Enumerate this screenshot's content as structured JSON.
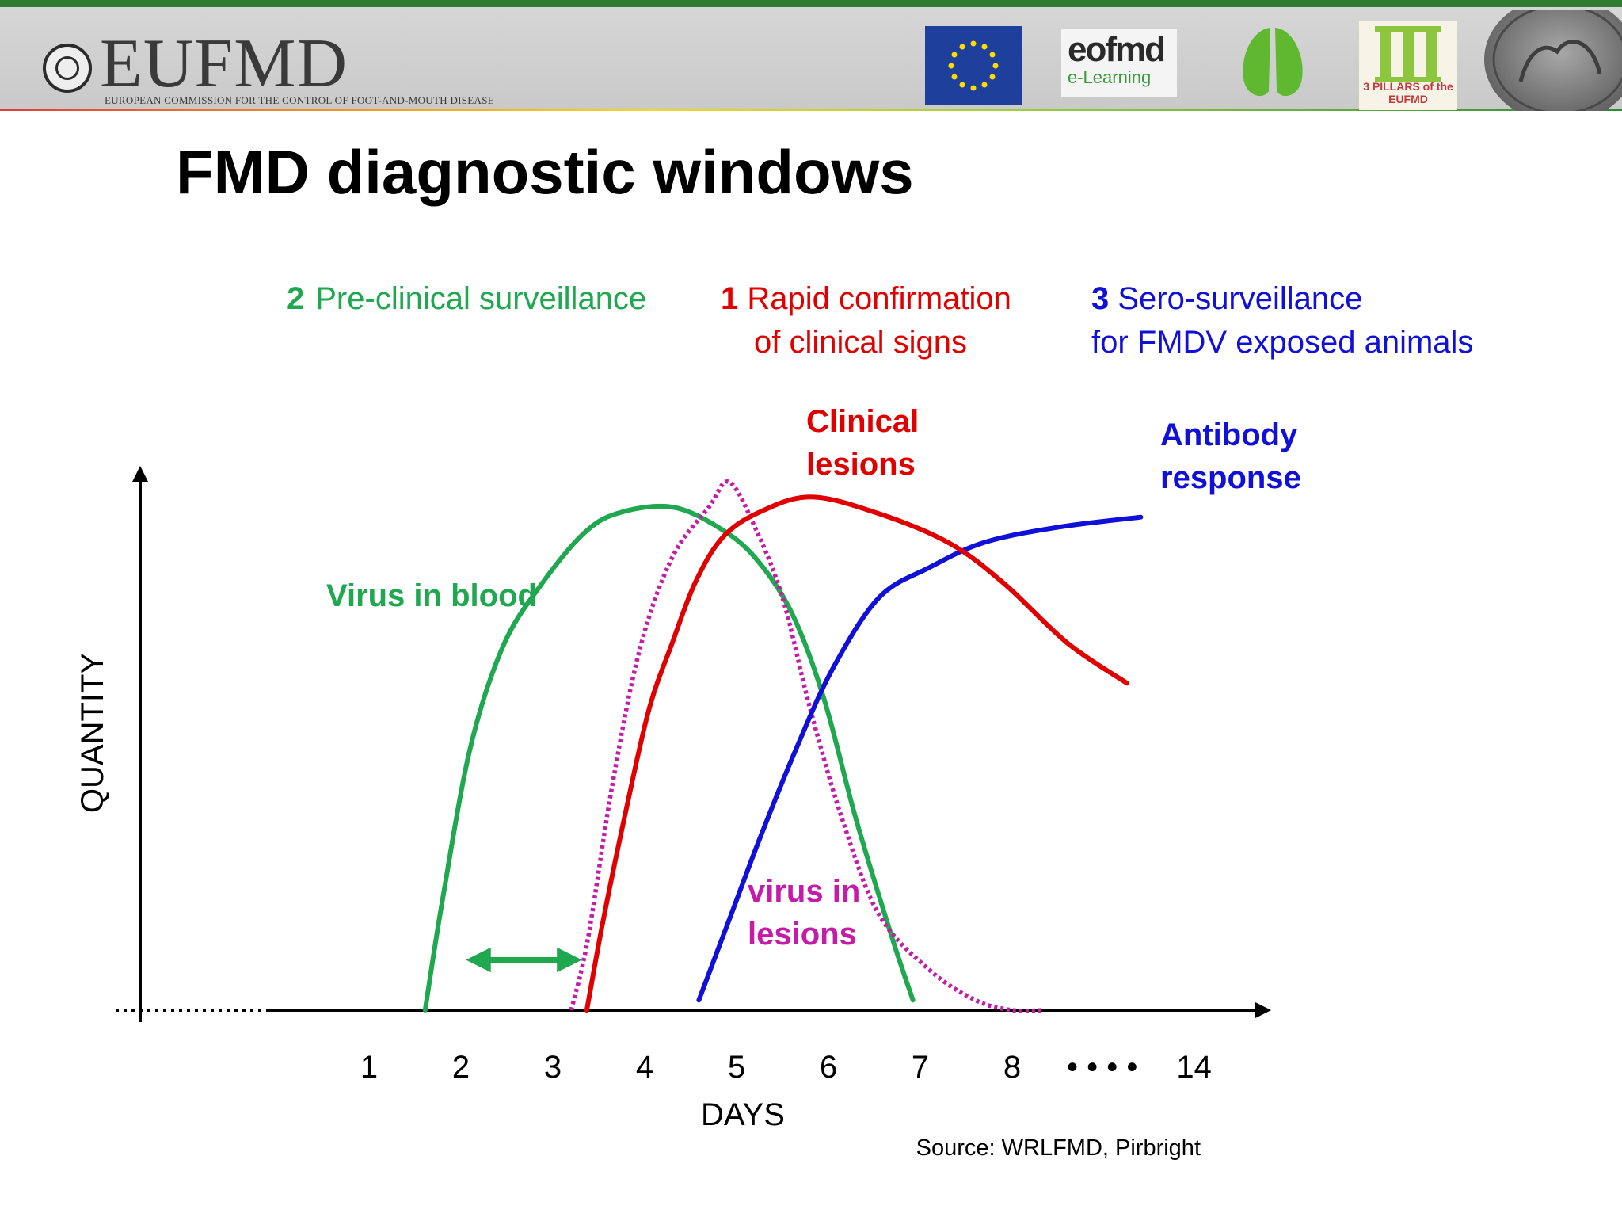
{
  "header": {
    "brand": "EUFMD",
    "brand_subtitle": "EUROPEAN COMMISSION FOR THE CONTROL OF FOOT-AND-MOUTH DISEASE",
    "logo_fao": "FAO",
    "logo_eofmd": "eofmd",
    "logo_eofmd_sub": "e-Learning",
    "logo_pillars": "3 PILLARS of the EUFMD",
    "colors": {
      "top_bar": "#2e7d32",
      "stripe": [
        "#e23a3a",
        "#f08a24",
        "#f6d523",
        "#9fcf3a",
        "#2e8b3a"
      ],
      "eu_flag": "#1f3f9c"
    }
  },
  "slide": {
    "title": "FMD diagnostic windows"
  },
  "windows": [
    {
      "number": "2",
      "line1": "Pre-clinical surveillance",
      "line2": "",
      "color": "#1fa84f"
    },
    {
      "number": "1",
      "line1": "Rapid confirmation",
      "line2": "of clinical signs",
      "color": "#e00000"
    },
    {
      "number": "3",
      "line1": "Sero-surveillance",
      "line2": "for FMDV exposed animals",
      "color": "#1010d8"
    }
  ],
  "chart_data": {
    "type": "line",
    "xlabel": "DAYS",
    "ylabel": "QUANTITY",
    "x_ticks": [
      "1",
      "2",
      "3",
      "4",
      "5",
      "6",
      "7",
      "8",
      "• • • •",
      "14"
    ],
    "xlim": [
      0,
      10.3
    ],
    "ylim": [
      0,
      100
    ],
    "y_ticks_shown": false,
    "baseline_style": "dotted before day 1",
    "series": [
      {
        "name": "Virus in blood",
        "color": "#1fa84f",
        "style": "solid",
        "label_lines": [
          "Virus in blood"
        ],
        "points": [
          [
            1.61,
            0
          ],
          [
            1.8,
            22
          ],
          [
            2.1,
            52
          ],
          [
            2.45,
            72
          ],
          [
            2.85,
            84
          ],
          [
            3.35,
            95
          ],
          [
            3.75,
            99
          ],
          [
            4.3,
            100
          ],
          [
            4.8,
            96
          ],
          [
            5.2,
            90
          ],
          [
            5.6,
            79
          ],
          [
            5.95,
            62
          ],
          [
            6.3,
            38
          ],
          [
            6.7,
            14
          ],
          [
            6.92,
            2
          ]
        ]
      },
      {
        "name": "Clinical lesions",
        "color": "#e00000",
        "style": "solid",
        "label_lines": [
          "Clinical",
          "lesions"
        ],
        "points": [
          [
            3.37,
            0
          ],
          [
            3.55,
            18
          ],
          [
            3.8,
            40
          ],
          [
            4.05,
            60
          ],
          [
            4.3,
            73
          ],
          [
            4.55,
            85
          ],
          [
            4.85,
            94
          ],
          [
            5.25,
            99
          ],
          [
            5.8,
            102
          ],
          [
            6.5,
            99
          ],
          [
            7.3,
            93
          ],
          [
            7.9,
            85
          ],
          [
            8.6,
            73
          ],
          [
            9.25,
            65
          ]
        ]
      },
      {
        "name": "virus in lesions",
        "color": "#c41ba8",
        "style": "dotted",
        "label_lines": [
          "virus in",
          "lesions"
        ],
        "points": [
          [
            3.2,
            0
          ],
          [
            3.38,
            14
          ],
          [
            3.65,
            45
          ],
          [
            3.95,
            72
          ],
          [
            4.3,
            90
          ],
          [
            4.7,
            100
          ],
          [
            4.92,
            105
          ],
          [
            5.2,
            96
          ],
          [
            5.5,
            82
          ],
          [
            5.8,
            60
          ],
          [
            6.15,
            38
          ],
          [
            6.55,
            19
          ],
          [
            7.1,
            8
          ],
          [
            7.6,
            2
          ],
          [
            8.0,
            0
          ],
          [
            8.35,
            0
          ]
        ]
      },
      {
        "name": "Antibody response",
        "color": "#1010d8",
        "style": "solid",
        "label_lines": [
          "Antibody",
          "response"
        ],
        "points": [
          [
            4.59,
            2
          ],
          [
            4.9,
            17
          ],
          [
            5.25,
            34
          ],
          [
            5.65,
            52
          ],
          [
            6.05,
            68
          ],
          [
            6.55,
            82
          ],
          [
            7.1,
            88
          ],
          [
            7.7,
            93
          ],
          [
            8.5,
            96
          ],
          [
            9.4,
            98
          ]
        ]
      }
    ],
    "annotations": [
      {
        "type": "double-arrow",
        "from_day": 2.0,
        "to_day": 3.37,
        "level": 10,
        "color": "#1fa84f"
      }
    ],
    "source": "Source: WRLFMD, Pirbright"
  }
}
